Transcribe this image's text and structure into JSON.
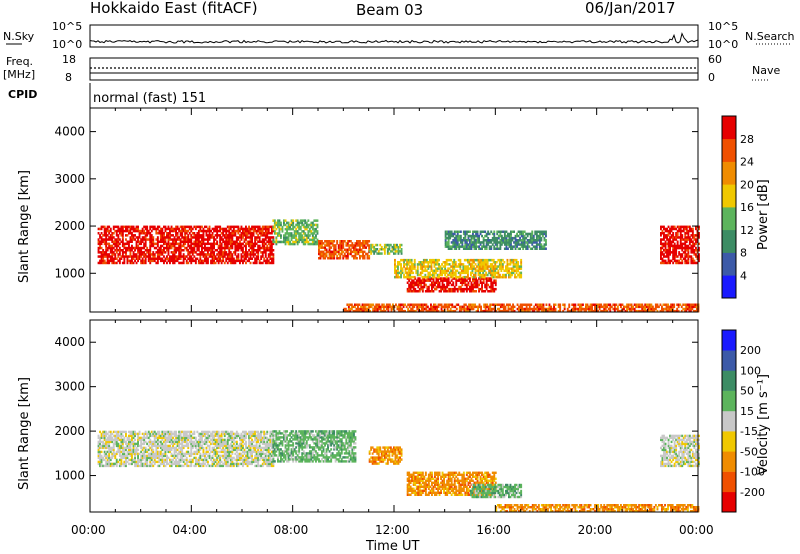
{
  "header": {
    "station": "Hokkaido East (fitACF)",
    "beam": "Beam 03",
    "date": "06/Jan/2017"
  },
  "top_panels": {
    "nsky_label": "N.Sky",
    "nsky_ticks": [
      "10^5",
      "10^0"
    ],
    "nsearch_label": "N.Search",
    "nsearch_ticks": [
      "10^5",
      "10^0"
    ],
    "freq_label_1": "Freq.",
    "freq_label_2": "[MHz]",
    "freq_ticks": [
      "18",
      "8"
    ],
    "nave_label": "Nave",
    "nave_ticks": [
      "60",
      "0"
    ],
    "cpid_label": "CPID",
    "cpid_value": "normal (fast) 151"
  },
  "chart_data": [
    {
      "type": "heatmap",
      "title": "",
      "xlabel": "",
      "ylabel": "Slant Range [km]",
      "y_ticks": [
        "1000",
        "2000",
        "3000",
        "4000"
      ],
      "ylim": [
        180,
        4500
      ],
      "xlim": [
        "00:00",
        "24:00"
      ],
      "colorbar_label": "Power [dB]",
      "colorbar_ticks": [
        "4",
        "8",
        "12",
        "16",
        "20",
        "24",
        "28"
      ],
      "colors": [
        "#1a1aff",
        "#3c5aa8",
        "#3c8c64",
        "#5cb45c",
        "#f0c800",
        "#f08c00",
        "#f05000",
        "#e60000"
      ],
      "bands": [
        {
          "t0": 0.3,
          "t1": 7.2,
          "r0": 1200,
          "r1": 2000,
          "level": 7
        },
        {
          "t0": 7.2,
          "t1": 9.0,
          "r0": 1600,
          "r1": 2100,
          "level": 3
        },
        {
          "t0": 9.0,
          "t1": 11.0,
          "r0": 1300,
          "r1": 1700,
          "level": 6
        },
        {
          "t0": 11.0,
          "t1": 12.3,
          "r0": 1400,
          "r1": 1600,
          "level": 3
        },
        {
          "t0": 12.5,
          "t1": 16.0,
          "r0": 600,
          "r1": 900,
          "level": 7
        },
        {
          "t0": 12.0,
          "t1": 17.0,
          "r0": 900,
          "r1": 1300,
          "level": 4
        },
        {
          "t0": 14.0,
          "t1": 18.0,
          "r0": 1500,
          "r1": 1900,
          "level": 2
        },
        {
          "t0": 22.5,
          "t1": 24.0,
          "r0": 1200,
          "r1": 2000,
          "level": 7
        },
        {
          "t0": 10.0,
          "t1": 24.0,
          "r0": 180,
          "r1": 350,
          "level": 6
        }
      ]
    },
    {
      "type": "heatmap",
      "title": "",
      "xlabel": "Time UT",
      "ylabel": "Slant Range [km]",
      "x_ticks": [
        "00:00",
        "04:00",
        "08:00",
        "12:00",
        "16:00",
        "20:00",
        "00:00"
      ],
      "y_ticks": [
        "1000",
        "2000",
        "3000",
        "4000"
      ],
      "ylim": [
        180,
        4500
      ],
      "xlim": [
        "00:00",
        "24:00"
      ],
      "colorbar_label": "Velocity [m s⁻¹]",
      "colorbar_ticks": [
        "-200",
        "-100",
        "-50",
        "-15",
        "15",
        "50",
        "100",
        "200"
      ],
      "colors": [
        "#e60000",
        "#f05000",
        "#f08c00",
        "#f0c800",
        "#c8c8c8",
        "#5cb45c",
        "#3c8c64",
        "#3c5aa8",
        "#1a1aff"
      ],
      "bands": [
        {
          "t0": 0.3,
          "t1": 7.2,
          "r0": 1200,
          "r1": 2000,
          "level": 4
        },
        {
          "t0": 7.2,
          "t1": 10.5,
          "r0": 1300,
          "r1": 2000,
          "level": 5
        },
        {
          "t0": 11.0,
          "t1": 12.3,
          "r0": 1250,
          "r1": 1650,
          "level": 2
        },
        {
          "t0": 12.5,
          "t1": 16.0,
          "r0": 550,
          "r1": 1050,
          "level": 2
        },
        {
          "t0": 15.0,
          "t1": 17.0,
          "r0": 500,
          "r1": 800,
          "level": 5
        },
        {
          "t0": 22.5,
          "t1": 24.0,
          "r0": 1200,
          "r1": 1900,
          "level": 4
        },
        {
          "t0": 16.0,
          "t1": 24.0,
          "r0": 180,
          "r1": 330,
          "level": 2
        }
      ]
    }
  ]
}
